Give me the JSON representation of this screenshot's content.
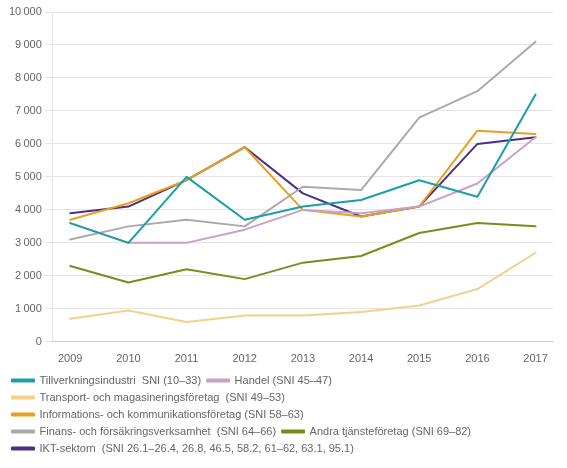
{
  "chart_data": {
    "type": "line",
    "x": [
      2009,
      2010,
      2011,
      2012,
      2013,
      2014,
      2015,
      2016,
      2017
    ],
    "series": [
      {
        "name": "Tillverkningsindustri  SNI (10–33)",
        "color": "#1a9faa",
        "values": [
          3600,
          3000,
          5000,
          3700,
          4100,
          4300,
          4900,
          4400,
          7500
        ]
      },
      {
        "name": "Handel (SNI 45–47)",
        "color": "#c8a0c8",
        "values": [
          3600,
          3000,
          3000,
          3400,
          4000,
          3900,
          4100,
          4800,
          6200
        ]
      },
      {
        "name": "Transport- och magasineringsföretag  (SNI 49–53)",
        "color": "#f5d08c",
        "values": [
          700,
          950,
          600,
          800,
          800,
          900,
          1100,
          1600,
          2700
        ]
      },
      {
        "name": "Informations- och kommunikationsföretag (SNI 58–63)",
        "color": "#e8a020",
        "values": [
          3700,
          4200,
          4900,
          5900,
          4000,
          3800,
          4100,
          6400,
          6300
        ]
      },
      {
        "name": "Finans- och försäkringsverksamhet  (SNI 64–66)",
        "color": "#aaaaaa",
        "values": [
          3100,
          3500,
          3700,
          3500,
          4700,
          4600,
          6800,
          7600,
          9100
        ]
      },
      {
        "name": "Andra tjänsteföretag (SNI 69–82)",
        "color": "#7b8c1e",
        "values": [
          2300,
          1800,
          2200,
          1900,
          2400,
          2600,
          3300,
          3600,
          3500
        ]
      },
      {
        "name": "IKT-sektorn  (SNI 26.1–26.4, 26.8, 46.5, 58.2, 61–62, 63.1, 95.1)",
        "color": "#4b3080",
        "values": [
          3900,
          4100,
          4900,
          5900,
          4500,
          3800,
          4100,
          6000,
          6200
        ]
      }
    ],
    "xlim": [
      2008.7,
      2017.3
    ],
    "xticks": [
      2009,
      2010,
      2011,
      2012,
      2013,
      2014,
      2015,
      2016,
      2017
    ],
    "ylim": [
      0,
      10000
    ],
    "yticks": [
      0,
      {
        "value": 1000,
        "label": "1 000"
      },
      {
        "value": 2000,
        "label": "2 000"
      },
      {
        "value": 3000,
        "label": "3 000"
      },
      {
        "value": 4000,
        "label": "4 000"
      },
      {
        "value": 5000,
        "label": "5 000"
      },
      {
        "value": 6000,
        "label": "6 000"
      },
      {
        "value": 7000,
        "label": "7 000"
      },
      {
        "value": 8000,
        "label": "8 000"
      },
      {
        "value": 9000,
        "label": "9 000"
      },
      {
        "value": 10000,
        "label": "10 000"
      }
    ],
    "grid": "y",
    "legend": "bottom"
  }
}
